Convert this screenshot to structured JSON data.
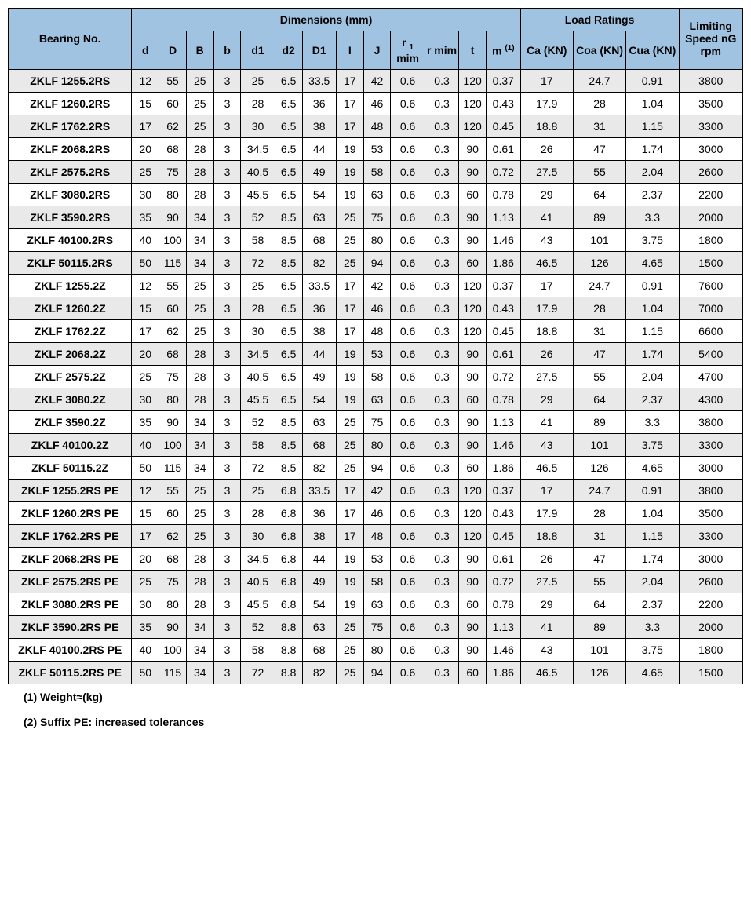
{
  "headers": {
    "bearing_no": "Bearing No.",
    "dimensions": "Dimensions (mm)",
    "load_ratings": "Load Ratings",
    "limiting_speed": "Limiting Speed nG rpm",
    "d": "d",
    "D_cap": "D",
    "B_cap": "B",
    "b": "b",
    "d1": "d1",
    "d2": "d2",
    "D1": "D1",
    "I": "I",
    "J": "J",
    "r1_mim_p1": "r ",
    "r1_mim_sub": "1",
    "r1_mim_p2": " mim",
    "r_mim": "r mim",
    "t": "t",
    "m_p1": "m ",
    "m_sup": "(1)",
    "ca": "Ca (KN)",
    "coa": "Coa (KN)",
    "cua": "Cua (KN)"
  },
  "rows": [
    {
      "bearing": "ZKLF 1255.2RS",
      "d": "12",
      "D": "55",
      "B": "25",
      "b": "3",
      "d1": "25",
      "d2": "6.5",
      "D1": "33.5",
      "I": "17",
      "J": "42",
      "r1": "0.6",
      "r": "0.3",
      "t": "120",
      "m": "0.37",
      "ca": "17",
      "coa": "24.7",
      "cua": "0.91",
      "speed": "3800",
      "gray": true
    },
    {
      "bearing": "ZKLF 1260.2RS",
      "d": "15",
      "D": "60",
      "B": "25",
      "b": "3",
      "d1": "28",
      "d2": "6.5",
      "D1": "36",
      "I": "17",
      "J": "46",
      "r1": "0.6",
      "r": "0.3",
      "t": "120",
      "m": "0.43",
      "ca": "17.9",
      "coa": "28",
      "cua": "1.04",
      "speed": "3500",
      "gray": false
    },
    {
      "bearing": "ZKLF 1762.2RS",
      "d": "17",
      "D": "62",
      "B": "25",
      "b": "3",
      "d1": "30",
      "d2": "6.5",
      "D1": "38",
      "I": "17",
      "J": "48",
      "r1": "0.6",
      "r": "0.3",
      "t": "120",
      "m": "0.45",
      "ca": "18.8",
      "coa": "31",
      "cua": "1.15",
      "speed": "3300",
      "gray": true
    },
    {
      "bearing": "ZKLF 2068.2RS",
      "d": "20",
      "D": "68",
      "B": "28",
      "b": "3",
      "d1": "34.5",
      "d2": "6.5",
      "D1": "44",
      "I": "19",
      "J": "53",
      "r1": "0.6",
      "r": "0.3",
      "t": "90",
      "m": "0.61",
      "ca": "26",
      "coa": "47",
      "cua": "1.74",
      "speed": "3000",
      "gray": false
    },
    {
      "bearing": "ZKLF 2575.2RS",
      "d": "25",
      "D": "75",
      "B": "28",
      "b": "3",
      "d1": "40.5",
      "d2": "6.5",
      "D1": "49",
      "I": "19",
      "J": "58",
      "r1": "0.6",
      "r": "0.3",
      "t": "90",
      "m": "0.72",
      "ca": "27.5",
      "coa": "55",
      "cua": "2.04",
      "speed": "2600",
      "gray": true
    },
    {
      "bearing": "ZKLF 3080.2RS",
      "d": "30",
      "D": "80",
      "B": "28",
      "b": "3",
      "d1": "45.5",
      "d2": "6.5",
      "D1": "54",
      "I": "19",
      "J": "63",
      "r1": "0.6",
      "r": "0.3",
      "t": "60",
      "m": "0.78",
      "ca": "29",
      "coa": "64",
      "cua": "2.37",
      "speed": "2200",
      "gray": false
    },
    {
      "bearing": "ZKLF 3590.2RS",
      "d": "35",
      "D": "90",
      "B": "34",
      "b": "3",
      "d1": "52",
      "d2": "8.5",
      "D1": "63",
      "I": "25",
      "J": "75",
      "r1": "0.6",
      "r": "0.3",
      "t": "90",
      "m": "1.13",
      "ca": "41",
      "coa": "89",
      "cua": "3.3",
      "speed": "2000",
      "gray": true
    },
    {
      "bearing": "ZKLF 40100.2RS",
      "d": "40",
      "D": "100",
      "B": "34",
      "b": "3",
      "d1": "58",
      "d2": "8.5",
      "D1": "68",
      "I": "25",
      "J": "80",
      "r1": "0.6",
      "r": "0.3",
      "t": "90",
      "m": "1.46",
      "ca": "43",
      "coa": "101",
      "cua": "3.75",
      "speed": "1800",
      "gray": false
    },
    {
      "bearing": "ZKLF 50115.2RS",
      "d": "50",
      "D": "115",
      "B": "34",
      "b": "3",
      "d1": "72",
      "d2": "8.5",
      "D1": "82",
      "I": "25",
      "J": "94",
      "r1": "0.6",
      "r": "0.3",
      "t": "60",
      "m": "1.86",
      "ca": "46.5",
      "coa": "126",
      "cua": "4.65",
      "speed": "1500",
      "gray": true
    },
    {
      "bearing": "ZKLF 1255.2Z",
      "d": "12",
      "D": "55",
      "B": "25",
      "b": "3",
      "d1": "25",
      "d2": "6.5",
      "D1": "33.5",
      "I": "17",
      "J": "42",
      "r1": "0.6",
      "r": "0.3",
      "t": "120",
      "m": "0.37",
      "ca": "17",
      "coa": "24.7",
      "cua": "0.91",
      "speed": "7600",
      "gray": false
    },
    {
      "bearing": "ZKLF 1260.2Z",
      "d": "15",
      "D": "60",
      "B": "25",
      "b": "3",
      "d1": "28",
      "d2": "6.5",
      "D1": "36",
      "I": "17",
      "J": "46",
      "r1": "0.6",
      "r": "0.3",
      "t": "120",
      "m": "0.43",
      "ca": "17.9",
      "coa": "28",
      "cua": "1.04",
      "speed": "7000",
      "gray": true
    },
    {
      "bearing": "ZKLF 1762.2Z",
      "d": "17",
      "D": "62",
      "B": "25",
      "b": "3",
      "d1": "30",
      "d2": "6.5",
      "D1": "38",
      "I": "17",
      "J": "48",
      "r1": "0.6",
      "r": "0.3",
      "t": "120",
      "m": "0.45",
      "ca": "18.8",
      "coa": "31",
      "cua": "1.15",
      "speed": "6600",
      "gray": false
    },
    {
      "bearing": "ZKLF 2068.2Z",
      "d": "20",
      "D": "68",
      "B": "28",
      "b": "3",
      "d1": "34.5",
      "d2": "6.5",
      "D1": "44",
      "I": "19",
      "J": "53",
      "r1": "0.6",
      "r": "0.3",
      "t": "90",
      "m": "0.61",
      "ca": "26",
      "coa": "47",
      "cua": "1.74",
      "speed": "5400",
      "gray": true
    },
    {
      "bearing": "ZKLF 2575.2Z",
      "d": "25",
      "D": "75",
      "B": "28",
      "b": "3",
      "d1": "40.5",
      "d2": "6.5",
      "D1": "49",
      "I": "19",
      "J": "58",
      "r1": "0.6",
      "r": "0.3",
      "t": "90",
      "m": "0.72",
      "ca": "27.5",
      "coa": "55",
      "cua": "2.04",
      "speed": "4700",
      "gray": false
    },
    {
      "bearing": "ZKLF 3080.2Z",
      "d": "30",
      "D": "80",
      "B": "28",
      "b": "3",
      "d1": "45.5",
      "d2": "6.5",
      "D1": "54",
      "I": "19",
      "J": "63",
      "r1": "0.6",
      "r": "0.3",
      "t": "60",
      "m": "0.78",
      "ca": "29",
      "coa": "64",
      "cua": "2.37",
      "speed": "4300",
      "gray": true
    },
    {
      "bearing": "ZKLF 3590.2Z",
      "d": "35",
      "D": "90",
      "B": "34",
      "b": "3",
      "d1": "52",
      "d2": "8.5",
      "D1": "63",
      "I": "25",
      "J": "75",
      "r1": "0.6",
      "r": "0.3",
      "t": "90",
      "m": "1.13",
      "ca": "41",
      "coa": "89",
      "cua": "3.3",
      "speed": "3800",
      "gray": false
    },
    {
      "bearing": "ZKLF 40100.2Z",
      "d": "40",
      "D": "100",
      "B": "34",
      "b": "3",
      "d1": "58",
      "d2": "8.5",
      "D1": "68",
      "I": "25",
      "J": "80",
      "r1": "0.6",
      "r": "0.3",
      "t": "90",
      "m": "1.46",
      "ca": "43",
      "coa": "101",
      "cua": "3.75",
      "speed": "3300",
      "gray": true
    },
    {
      "bearing": "ZKLF 50115.2Z",
      "d": "50",
      "D": "115",
      "B": "34",
      "b": "3",
      "d1": "72",
      "d2": "8.5",
      "D1": "82",
      "I": "25",
      "J": "94",
      "r1": "0.6",
      "r": "0.3",
      "t": "60",
      "m": "1.86",
      "ca": "46.5",
      "coa": "126",
      "cua": "4.65",
      "speed": "3000",
      "gray": false
    },
    {
      "bearing": "ZKLF 1255.2RS PE",
      "d": "12",
      "D": "55",
      "B": "25",
      "b": "3",
      "d1": "25",
      "d2": "6.8",
      "D1": "33.5",
      "I": "17",
      "J": "42",
      "r1": "0.6",
      "r": "0.3",
      "t": "120",
      "m": "0.37",
      "ca": "17",
      "coa": "24.7",
      "cua": "0.91",
      "speed": "3800",
      "gray": true
    },
    {
      "bearing": "ZKLF 1260.2RS PE",
      "d": "15",
      "D": "60",
      "B": "25",
      "b": "3",
      "d1": "28",
      "d2": "6.8",
      "D1": "36",
      "I": "17",
      "J": "46",
      "r1": "0.6",
      "r": "0.3",
      "t": "120",
      "m": "0.43",
      "ca": "17.9",
      "coa": "28",
      "cua": "1.04",
      "speed": "3500",
      "gray": false
    },
    {
      "bearing": "ZKLF 1762.2RS PE",
      "d": "17",
      "D": "62",
      "B": "25",
      "b": "3",
      "d1": "30",
      "d2": "6.8",
      "D1": "38",
      "I": "17",
      "J": "48",
      "r1": "0.6",
      "r": "0.3",
      "t": "120",
      "m": "0.45",
      "ca": "18.8",
      "coa": "31",
      "cua": "1.15",
      "speed": "3300",
      "gray": true
    },
    {
      "bearing": "ZKLF 2068.2RS PE",
      "d": "20",
      "D": "68",
      "B": "28",
      "b": "3",
      "d1": "34.5",
      "d2": "6.8",
      "D1": "44",
      "I": "19",
      "J": "53",
      "r1": "0.6",
      "r": "0.3",
      "t": "90",
      "m": "0.61",
      "ca": "26",
      "coa": "47",
      "cua": "1.74",
      "speed": "3000",
      "gray": false
    },
    {
      "bearing": "ZKLF 2575.2RS PE",
      "d": "25",
      "D": "75",
      "B": "28",
      "b": "3",
      "d1": "40.5",
      "d2": "6.8",
      "D1": "49",
      "I": "19",
      "J": "58",
      "r1": "0.6",
      "r": "0.3",
      "t": "90",
      "m": "0.72",
      "ca": "27.5",
      "coa": "55",
      "cua": "2.04",
      "speed": "2600",
      "gray": true
    },
    {
      "bearing": "ZKLF 3080.2RS PE",
      "d": "30",
      "D": "80",
      "B": "28",
      "b": "3",
      "d1": "45.5",
      "d2": "6.8",
      "D1": "54",
      "I": "19",
      "J": "63",
      "r1": "0.6",
      "r": "0.3",
      "t": "60",
      "m": "0.78",
      "ca": "29",
      "coa": "64",
      "cua": "2.37",
      "speed": "2200",
      "gray": false
    },
    {
      "bearing": "ZKLF 3590.2RS PE",
      "d": "35",
      "D": "90",
      "B": "34",
      "b": "3",
      "d1": "52",
      "d2": "8.8",
      "D1": "63",
      "I": "25",
      "J": "75",
      "r1": "0.6",
      "r": "0.3",
      "t": "90",
      "m": "1.13",
      "ca": "41",
      "coa": "89",
      "cua": "3.3",
      "speed": "2000",
      "gray": true
    },
    {
      "bearing": "ZKLF 40100.2RS PE",
      "d": "40",
      "D": "100",
      "B": "34",
      "b": "3",
      "d1": "58",
      "d2": "8.8",
      "D1": "68",
      "I": "25",
      "J": "80",
      "r1": "0.6",
      "r": "0.3",
      "t": "90",
      "m": "1.46",
      "ca": "43",
      "coa": "101",
      "cua": "3.75",
      "speed": "1800",
      "gray": false
    },
    {
      "bearing": "ZKLF 50115.2RS PE",
      "d": "50",
      "D": "115",
      "B": "34",
      "b": "3",
      "d1": "72",
      "d2": "8.8",
      "D1": "82",
      "I": "25",
      "J": "94",
      "r1": "0.6",
      "r": "0.3",
      "t": "60",
      "m": "1.86",
      "ca": "46.5",
      "coa": "126",
      "cua": "4.65",
      "speed": "1500",
      "gray": true
    }
  ],
  "footnotes": {
    "f1": "(1)   Weight≈(kg)",
    "f2": "(2)   Suffix PE: increased tolerances"
  }
}
